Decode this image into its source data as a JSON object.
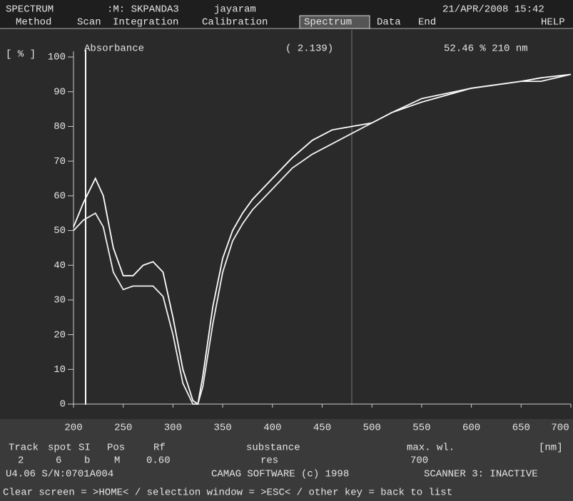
{
  "header": {
    "mode": "SPECTRUM",
    "method": ":M: SKPANDA3",
    "user": "jayaram",
    "datetime": "21/APR/2008 15:42"
  },
  "menu": {
    "items": [
      "Method",
      "Scan",
      "Integration",
      "Calibration",
      "Spectrum",
      "Data",
      "End"
    ],
    "help": "HELP",
    "active": "Spectrum"
  },
  "chart_data": {
    "type": "line",
    "title": "Absorbance",
    "ylabel": "[ % ]",
    "cursor_readout": "( 2.139)",
    "cursor_position": "52.46 %  210 nm",
    "x": [
      200,
      210,
      222,
      230,
      240,
      250,
      260,
      270,
      280,
      290,
      300,
      310,
      320,
      325,
      330,
      340,
      350,
      360,
      370,
      380,
      400,
      420,
      440,
      460,
      480,
      500,
      520,
      550,
      600,
      650,
      670,
      700
    ],
    "series": [
      {
        "color": "#ffffff",
        "values": [
          51,
          58,
          65,
          60,
          45,
          37,
          37,
          40,
          41,
          38,
          25,
          10,
          1,
          0,
          8,
          28,
          42,
          50,
          55,
          59,
          65,
          71,
          76,
          79,
          80,
          81,
          84,
          87,
          91,
          93,
          94,
          95
        ]
      },
      {
        "color": "#f2f2f2",
        "values": [
          50,
          53,
          55,
          51,
          38,
          33,
          34,
          34,
          34,
          31,
          20,
          6,
          0,
          0,
          5,
          23,
          38,
          47,
          52,
          56,
          62,
          68,
          72,
          75,
          78,
          81,
          84,
          88,
          91,
          93,
          93,
          95
        ]
      }
    ],
    "xlim": [
      200,
      700
    ],
    "ylim": [
      0,
      100
    ],
    "xticks": [
      200,
      250,
      300,
      350,
      400,
      450,
      500,
      550,
      600,
      650,
      700
    ],
    "yticks": [
      0,
      10,
      20,
      30,
      40,
      50,
      60,
      70,
      80,
      90,
      100
    ]
  },
  "table": {
    "headers": [
      "Track",
      "spot",
      "SI",
      "Pos",
      "Rf",
      "substance",
      "max. wl.",
      "[nm]"
    ],
    "row": [
      "2",
      "6",
      "b",
      "M",
      "0.60",
      "res",
      "700"
    ]
  },
  "footer": {
    "version": "U4.06 S/N:0701A004",
    "copyright": "CAMAG SOFTWARE (c) 1998",
    "status": "SCANNER 3: INACTIVE",
    "help": "Clear screen = >HOME< / selection window = >ESC< / other key = back to list"
  }
}
